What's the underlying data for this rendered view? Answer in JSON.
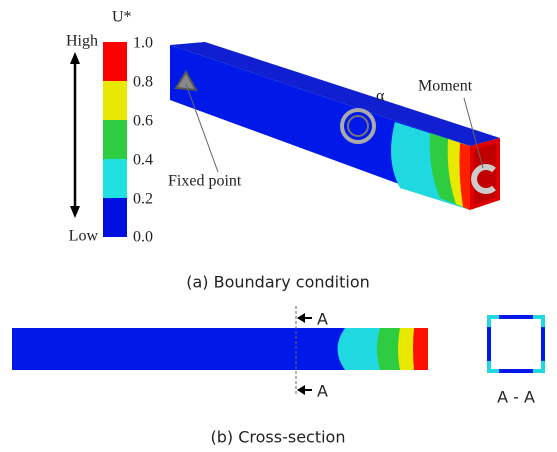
{
  "colorbar": {
    "title": "U*",
    "high": "High",
    "low": "Low",
    "ticks": [
      "1.0",
      "0.8",
      "0.6",
      "0.4",
      "0.2",
      "0.0"
    ]
  },
  "labels": {
    "alpha": "α",
    "moment": "Moment",
    "fixed_point": "Fixed point"
  },
  "captions": {
    "a": "(a) Boundary condition",
    "b": "(b) Cross-section"
  },
  "section": {
    "marker_top": "A",
    "marker_bottom": "A",
    "label": "A - A"
  }
}
